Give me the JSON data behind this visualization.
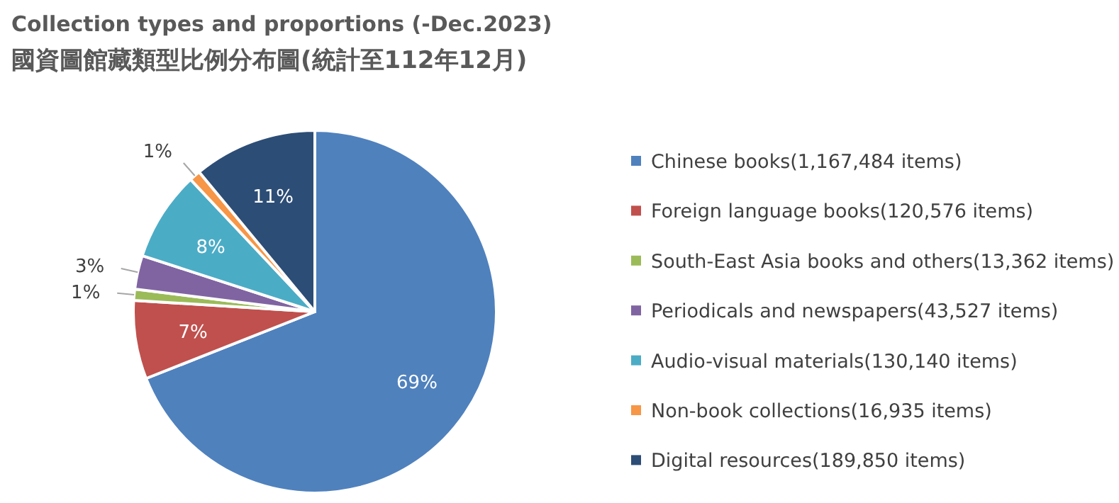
{
  "chart_data": {
    "type": "pie",
    "title": "Collection types and proportions (-Dec.2023)",
    "subtitle": "國資圖館藏類型比例分布圖(統計至112年12月)",
    "categories": [
      "Chinese books(1,167,484 items)",
      "Foreign language books(120,576 items)",
      "South-East Asia books and others(13,362 items)",
      "Periodicals and newspapers(43,527 items)",
      "Audio-visual materials(130,140 items)",
      "Non-book collections(16,935 items)",
      "Digital resources(189,850 items)"
    ],
    "values": [
      69,
      7,
      1,
      3,
      8,
      1,
      11
    ],
    "colors": [
      "#4f81bd",
      "#c0504d",
      "#9bbb59",
      "#8064a2",
      "#4bacc6",
      "#f79646",
      "#2c4d75"
    ],
    "value_labels": [
      "69%",
      "7%",
      "1%",
      "3%",
      "8%",
      "1%",
      "11%"
    ],
    "legend": "right"
  }
}
